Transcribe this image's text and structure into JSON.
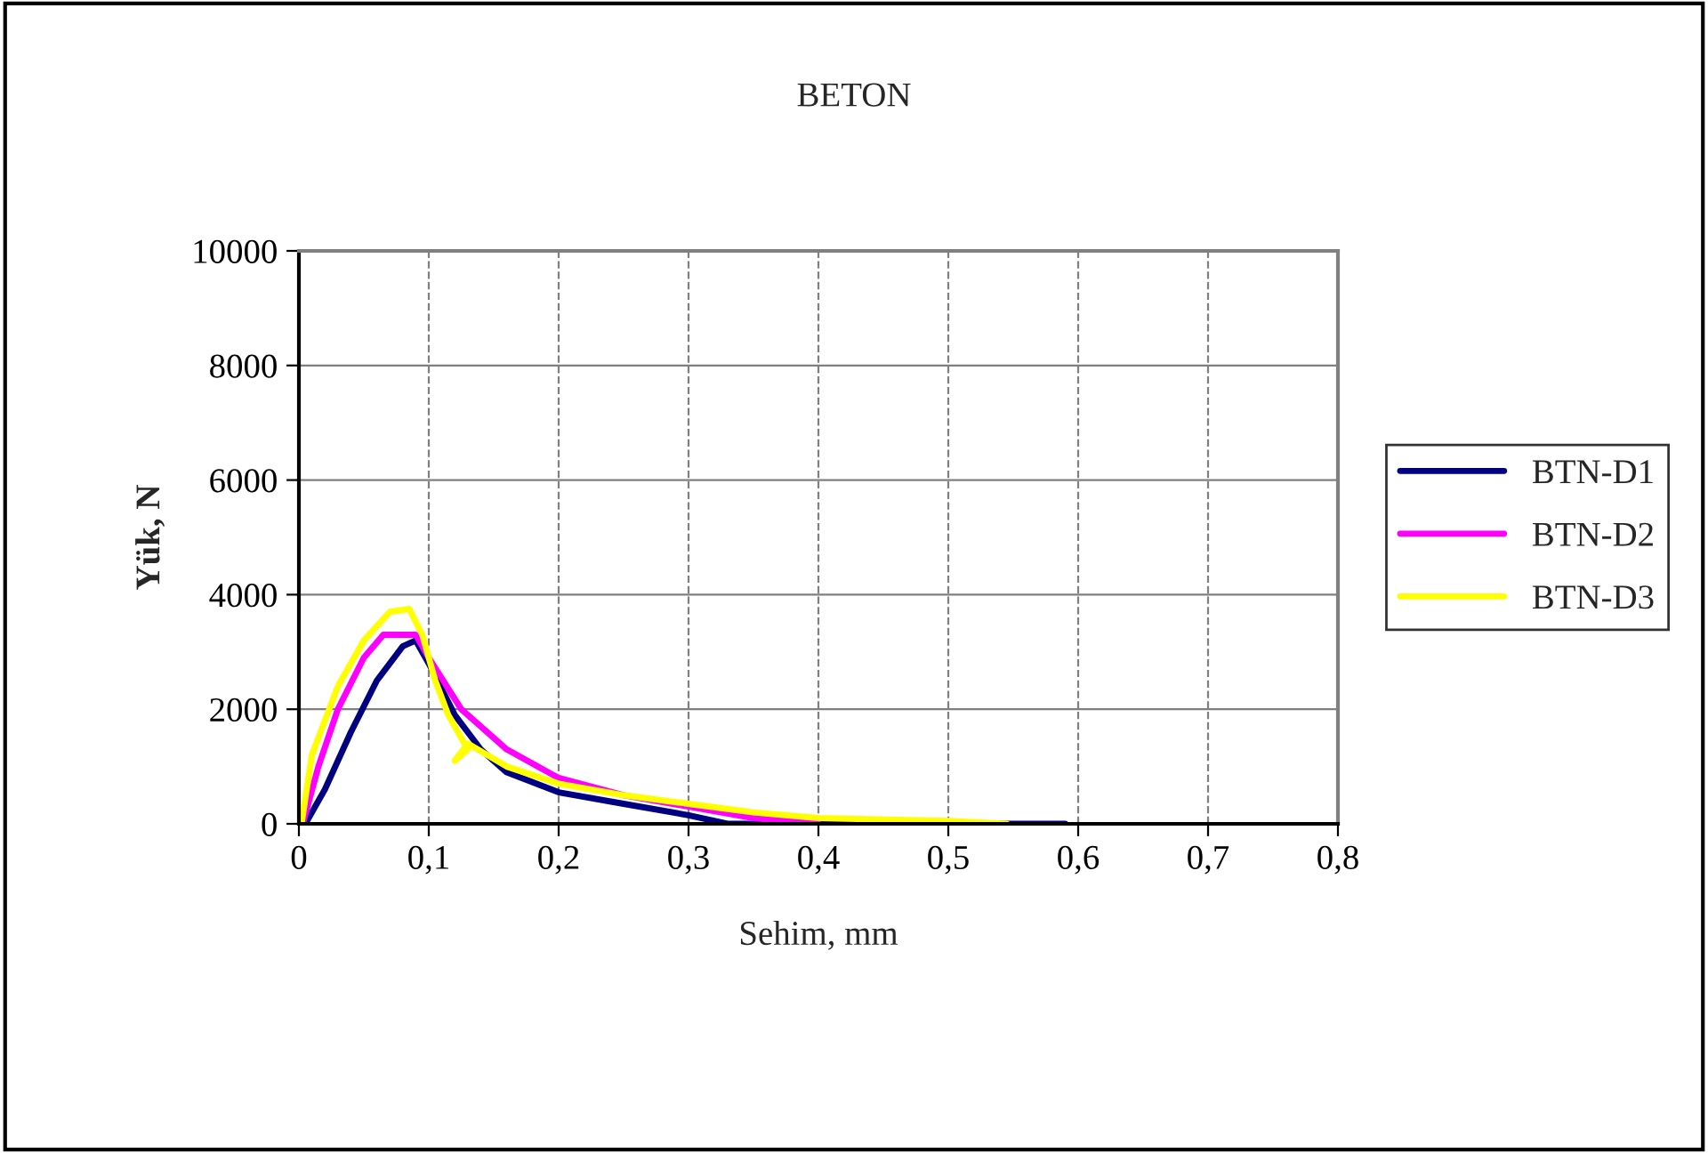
{
  "chart_data": {
    "type": "line",
    "title": "BETON",
    "xlabel": "Sehim, mm",
    "ylabel": "Yük, N",
    "xlim": [
      0,
      0.8
    ],
    "xticks": [
      0,
      {
        "value": 0.1,
        "label": "0,1"
      },
      {
        "value": 0.2,
        "label": "0,2"
      },
      {
        "value": 0.3,
        "label": "0,3"
      },
      {
        "value": 0.4,
        "label": "0,4"
      },
      {
        "value": 0.5,
        "label": "0,5"
      },
      {
        "value": 0.6,
        "label": "0,6"
      },
      {
        "value": 0.7,
        "label": "0,7"
      },
      {
        "value": 0.8,
        "label": "0,8"
      }
    ],
    "ylim": [
      0,
      10000
    ],
    "yticks": [
      0,
      2000,
      4000,
      6000,
      8000,
      10000
    ],
    "grid": true,
    "legend": "right",
    "line_style": "solid",
    "series": [
      {
        "name": "BTN-D1",
        "color": "#000080",
        "x": [
          0.005,
          0.02,
          0.04,
          0.06,
          0.08,
          0.09,
          0.1,
          0.12,
          0.14,
          0.16,
          0.2,
          0.25,
          0.3,
          0.33,
          0.4,
          0.5,
          0.59
        ],
        "values": [
          0,
          600,
          1600,
          2500,
          3100,
          3200,
          2800,
          1900,
          1300,
          900,
          550,
          350,
          150,
          0,
          0,
          0,
          0
        ]
      },
      {
        "name": "BTN-D2",
        "color": "#ff00ff",
        "x": [
          0.003,
          0.015,
          0.03,
          0.05,
          0.065,
          0.09,
          0.1,
          0.125,
          0.16,
          0.2,
          0.25,
          0.3,
          0.35,
          0.4
        ],
        "values": [
          0,
          1000,
          2000,
          2900,
          3300,
          3300,
          2900,
          2000,
          1300,
          800,
          500,
          300,
          100,
          0
        ]
      },
      {
        "name": "BTN-D3",
        "color": "#ffff00",
        "x": [
          0.002,
          0.01,
          0.03,
          0.05,
          0.07,
          0.085,
          0.095,
          0.105,
          0.115,
          0.125,
          0.13,
          0.12,
          0.13,
          0.16,
          0.2,
          0.25,
          0.3,
          0.35,
          0.4,
          0.5,
          0.545
        ],
        "values": [
          0,
          1200,
          2400,
          3200,
          3700,
          3750,
          3300,
          2500,
          1900,
          1500,
          1300,
          1100,
          1400,
          1000,
          700,
          500,
          350,
          200,
          100,
          50,
          0
        ]
      }
    ]
  }
}
